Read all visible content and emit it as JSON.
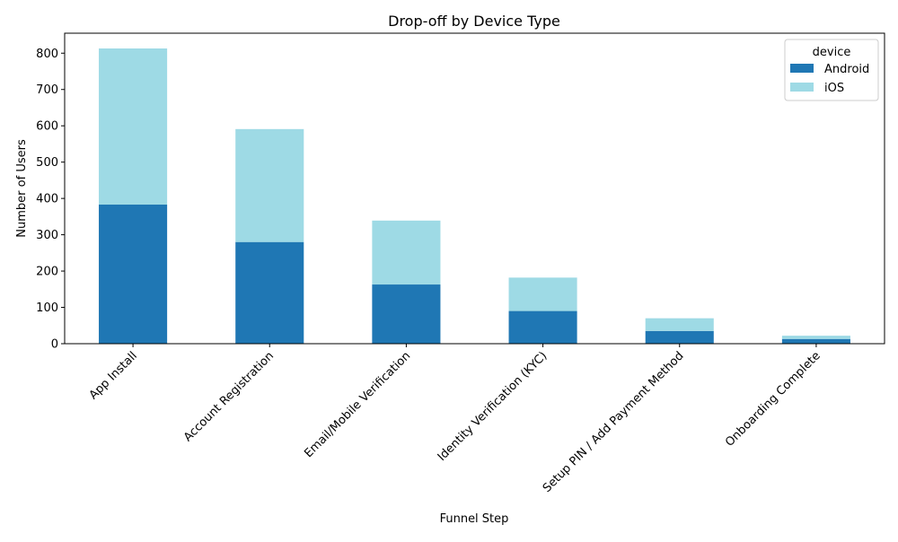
{
  "chart_data": {
    "type": "bar",
    "stacked": true,
    "title": "Drop-off by Device Type",
    "xlabel": "Funnel Step",
    "ylabel": "Number of Users",
    "categories": [
      "App Install",
      "Account Registration",
      "Email/Mobile Verification",
      "Identity Verification (KYC)",
      "Setup PIN / Add Payment Method",
      "Onboarding Complete"
    ],
    "series": [
      {
        "name": "Android",
        "values": [
          383,
          280,
          163,
          90,
          35,
          13
        ],
        "color": "#1f77b4"
      },
      {
        "name": "iOS",
        "values": [
          430,
          311,
          176,
          92,
          35,
          9
        ],
        "color": "#9edae5"
      }
    ],
    "ylim": [
      0,
      855
    ],
    "yticks": [
      0,
      100,
      200,
      300,
      400,
      500,
      600,
      700,
      800
    ],
    "legend": {
      "title": "device",
      "placement": "top-right"
    },
    "grid": false
  }
}
